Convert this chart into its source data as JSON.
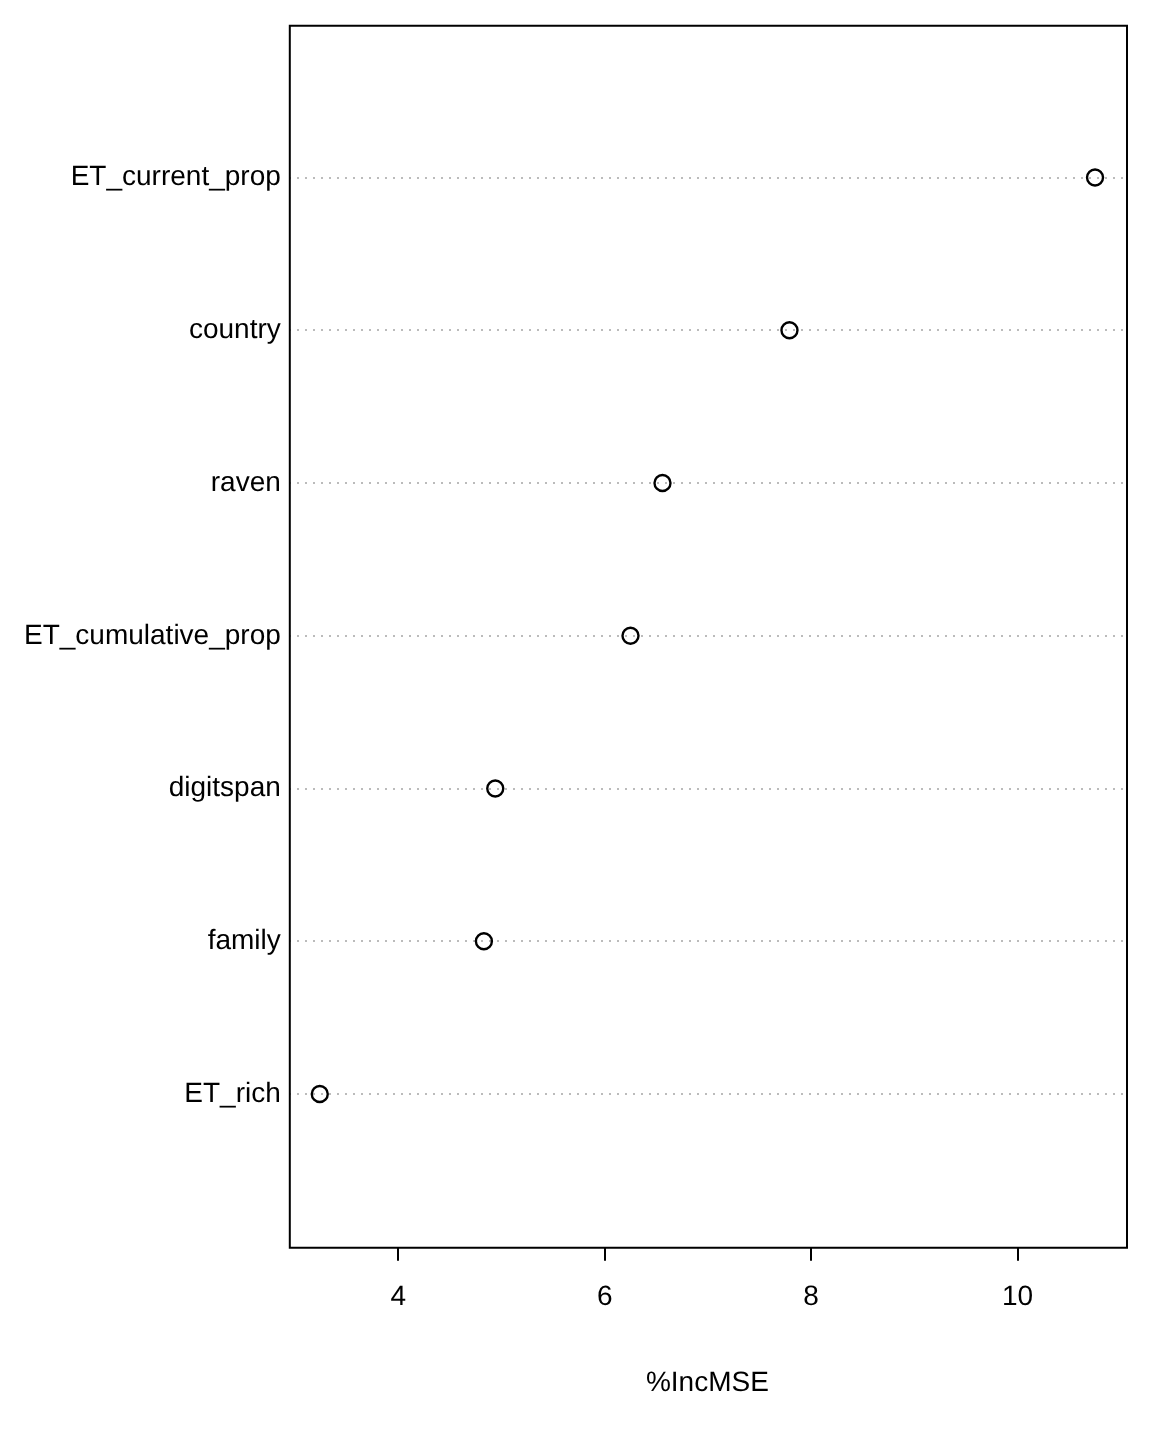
{
  "chart_data": {
    "type": "scatter",
    "orientation": "horizontal",
    "xlabel": "%IncMSE",
    "categories": [
      "ET_current_prop",
      "country",
      "raven",
      "ET_cumulative_prop",
      "digitspan",
      "family",
      "ET_rich"
    ],
    "values": [
      10.75,
      7.79,
      6.56,
      6.25,
      4.94,
      4.83,
      3.24
    ],
    "color": "#000000",
    "marker": "circle",
    "xlim": [
      2.94,
      11.05
    ],
    "xticks": [
      4,
      6,
      8,
      10
    ],
    "grid": "y"
  }
}
